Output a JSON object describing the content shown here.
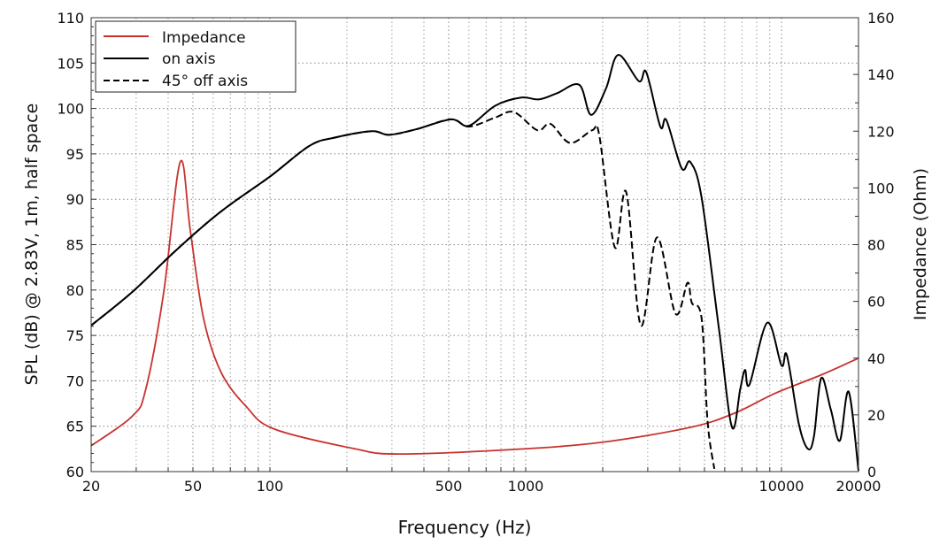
{
  "chart_data": {
    "type": "line",
    "xlabel": "Frequency (Hz)",
    "ylabel": "SPL (dB) @ 2.83V, 1m, half space",
    "y2label": "Impedance (Ohm)",
    "xscale": "log",
    "xlim": [
      20,
      20000
    ],
    "ylim": [
      60,
      110
    ],
    "y2lim": [
      0,
      160
    ],
    "xticks": [
      20,
      50,
      100,
      500,
      1000,
      10000,
      20000
    ],
    "yticks": [
      60,
      65,
      70,
      75,
      80,
      85,
      90,
      95,
      100,
      105,
      110
    ],
    "y2ticks": [
      0,
      20,
      40,
      60,
      80,
      100,
      120,
      140,
      160
    ],
    "grid": true,
    "legend": "top-left",
    "series": [
      {
        "name": "Impedance",
        "axis": "right",
        "color": "#c8322e",
        "style": "solid",
        "x": [
          20,
          29,
          32.7,
          38.4,
          44.6,
          48.8,
          55,
          64.4,
          81,
          104,
          213,
          318,
          890,
          1970,
          4400,
          6550,
          9500,
          14500,
          20000
        ],
        "y": [
          9.1,
          19.6,
          29,
          63,
          109.2,
          85,
          54,
          35,
          22.8,
          15,
          8.1,
          6.2,
          7.8,
          10.3,
          15.6,
          20.6,
          27.7,
          34.3,
          40
        ]
      },
      {
        "name": "on axis",
        "axis": "left",
        "color": "#000000",
        "style": "solid",
        "x": [
          20,
          29,
          43,
          64,
          100,
          143,
          180,
          250,
          292,
          372,
          510,
          600,
          760,
          960,
          1130,
          1330,
          1620,
          1800,
          2060,
          2300,
          2770,
          2960,
          3360,
          3550,
          4070,
          4400,
          4870,
          5700,
          6400,
          6900,
          7200,
          7500,
          8800,
          10000,
          10500,
          11700,
          12700,
          13400,
          14300,
          15600,
          16900,
          18300,
          20000
        ],
        "y": [
          76.1,
          79.8,
          84.4,
          88.6,
          92.5,
          95.9,
          96.8,
          97.5,
          97.1,
          97.7,
          98.8,
          98.1,
          100.3,
          101.2,
          101,
          101.7,
          102.6,
          99.3,
          102.2,
          105.9,
          103,
          104,
          98,
          98.7,
          93.4,
          94.1,
          90.2,
          75.6,
          64.9,
          69.1,
          71.2,
          69.6,
          76.4,
          71.7,
          72.8,
          65.2,
          62.5,
          63.9,
          70.3,
          66.8,
          63.4,
          68.8,
          60.1
        ]
      },
      {
        "name": "45° off axis",
        "axis": "left",
        "color": "#000000",
        "style": "dashed",
        "x": [
          20,
          29,
          43,
          64,
          100,
          143,
          180,
          250,
          292,
          372,
          510,
          600,
          760,
          900,
          1110,
          1250,
          1490,
          1820,
          1940,
          2230,
          2470,
          2820,
          3260,
          3850,
          4290,
          4460,
          4870,
          5140,
          5460
        ],
        "y": [
          76.1,
          79.8,
          84.4,
          88.6,
          92.5,
          95.9,
          96.8,
          97.5,
          97.1,
          97.7,
          98.8,
          98.0,
          99.0,
          99.6,
          97.6,
          98.3,
          96.2,
          97.6,
          97,
          84.7,
          90.8,
          76.1,
          85.8,
          77.4,
          80.8,
          78.6,
          76.9,
          65.5,
          60.3
        ]
      }
    ]
  }
}
